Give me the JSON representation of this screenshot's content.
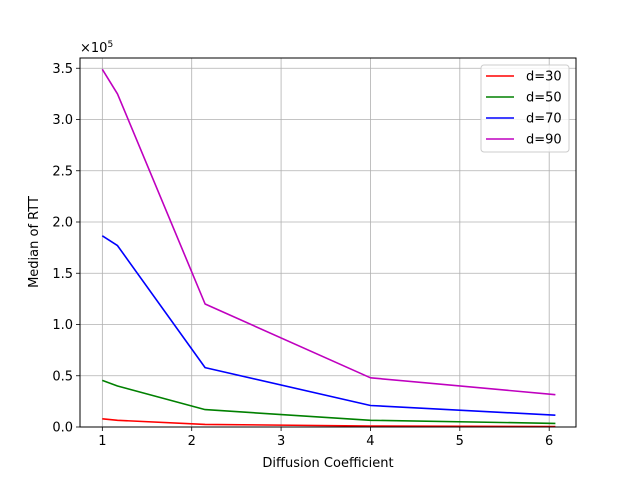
{
  "chart_data": {
    "type": "line",
    "title": "",
    "xlabel": "Diffusion Coefficient",
    "ylabel": "Median of RTT",
    "y_offset_label": "×10",
    "y_offset_exponent": "5",
    "y_scale_factor": 100000,
    "xlim": [
      0.75,
      6.3
    ],
    "ylim": [
      0,
      3.6
    ],
    "x_ticks": [
      1,
      2,
      3,
      4,
      5,
      6
    ],
    "y_ticks": [
      0.0,
      0.5,
      1.0,
      1.5,
      2.0,
      2.5,
      3.0,
      3.5
    ],
    "grid": true,
    "legend_position": "upper-right",
    "x": [
      1.0,
      1.17,
      2.15,
      4.0,
      6.07
    ],
    "series": [
      {
        "name": "d=30",
        "color": "#ff0000",
        "values": [
          0.08,
          0.065,
          0.025,
          0.01,
          0.005
        ]
      },
      {
        "name": "d=50",
        "color": "#008000",
        "values": [
          0.455,
          0.4,
          0.17,
          0.065,
          0.035
        ]
      },
      {
        "name": "d=70",
        "color": "#0000ff",
        "values": [
          1.865,
          1.77,
          0.58,
          0.21,
          0.115
        ]
      },
      {
        "name": "d=90",
        "color": "#bf00bf",
        "values": [
          3.49,
          3.25,
          1.2,
          0.48,
          0.315
        ]
      }
    ]
  }
}
